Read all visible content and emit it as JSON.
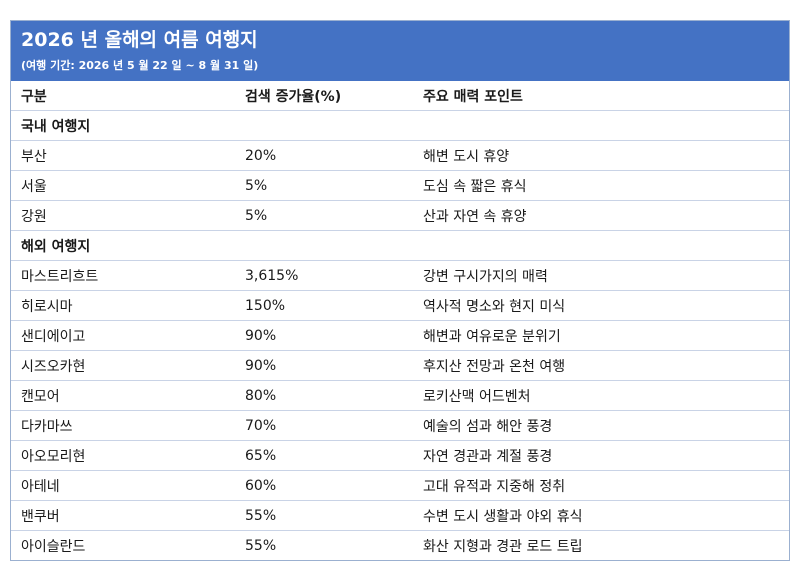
{
  "title": "2026 년 올해의 여름 여행지",
  "subtitle": "(여행 기간: 2026 년 5 월 22 일 ~ 8 월 31 일)",
  "columns": {
    "region": "구분",
    "growth": "검색 증가율(%)",
    "points": "주요 매력 포인트"
  },
  "domestic": {
    "heading": "국내 여행지",
    "rows": [
      {
        "name": "부산",
        "growth": "20%",
        "point": "해변 도시 휴양"
      },
      {
        "name": "서울",
        "growth": "5%",
        "point": "도심 속 짧은 휴식"
      },
      {
        "name": "강원",
        "growth": "5%",
        "point": "산과 자연 속 휴양"
      }
    ]
  },
  "overseas": {
    "heading": "해외 여행지",
    "rows": [
      {
        "name": "마스트리흐트",
        "growth": "3,615%",
        "point": "강변 구시가지의 매력"
      },
      {
        "name": "히로시마",
        "growth": "150%",
        "point": "역사적 명소와 현지 미식"
      },
      {
        "name": "샌디에이고",
        "growth": "90%",
        "point": "해변과 여유로운 분위기"
      },
      {
        "name": "시즈오카현",
        "growth": "90%",
        "point": "후지산 전망과 온천 여행"
      },
      {
        "name": "캔모어",
        "growth": "80%",
        "point": "로키산맥 어드벤처"
      },
      {
        "name": "다카마쓰",
        "growth": "70%",
        "point": "예술의 섬과 해안 풍경"
      },
      {
        "name": "아오모리현",
        "growth": "65%",
        "point": "자연 경관과 계절 풍경"
      },
      {
        "name": "아테네",
        "growth": "60%",
        "point": "고대 유적과 지중해 정취"
      },
      {
        "name": "밴쿠버",
        "growth": "55%",
        "point": "수변 도시 생활과 야외 휴식"
      },
      {
        "name": "아이슬란드",
        "growth": "55%",
        "point": "화산 지형과 경관 로드 트립"
      }
    ]
  }
}
